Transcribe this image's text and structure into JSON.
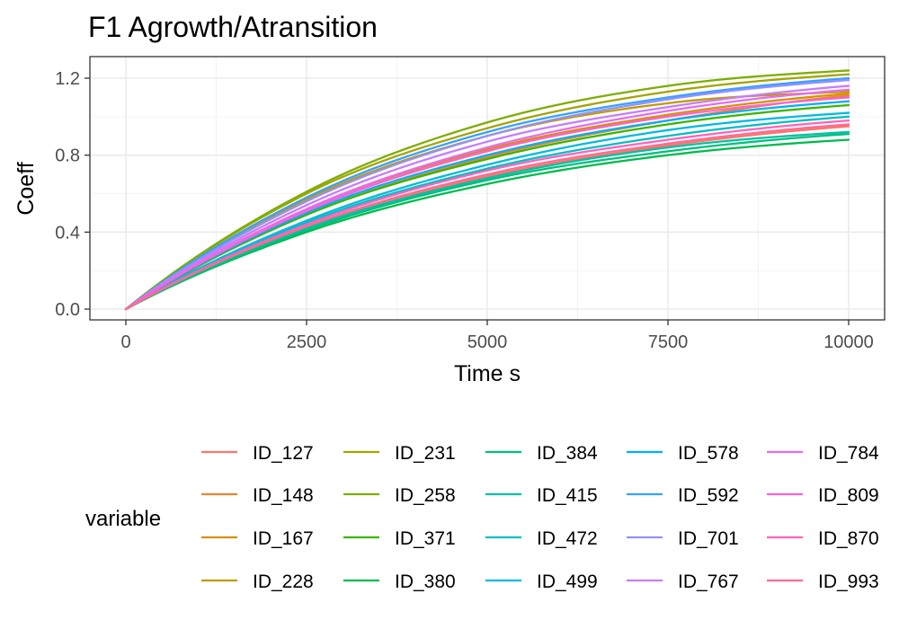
{
  "chart_data": {
    "type": "line",
    "title": "F1 Agrowth/Atransition",
    "xlabel": "Time s",
    "ylabel": "Coeff",
    "xlim": [
      0,
      10000
    ],
    "ylim": [
      0,
      1.25
    ],
    "x_ticks": [
      0,
      2500,
      5000,
      7500,
      10000
    ],
    "x_tick_labels": [
      "0",
      "2500",
      "5000",
      "7500",
      "10000"
    ],
    "y_ticks": [
      0,
      0.4,
      0.8,
      1.2
    ],
    "y_tick_labels": [
      "0.0",
      "0.4",
      "0.8",
      "1.2"
    ],
    "grid": true,
    "legend": {
      "title": "variable",
      "position": "bottom"
    },
    "x": [
      0,
      2500,
      5000,
      7500,
      10000
    ],
    "series": [
      {
        "name": "ID_127",
        "color": "#F8766D",
        "values": [
          0,
          0.43,
          0.69,
          0.85,
          0.95
        ]
      },
      {
        "name": "ID_148",
        "color": "#EA8331",
        "values": [
          0,
          0.49,
          0.79,
          0.98,
          1.11
        ]
      },
      {
        "name": "ID_167",
        "color": "#D89000",
        "values": [
          0,
          0.52,
          0.83,
          1.01,
          1.12
        ]
      },
      {
        "name": "ID_228",
        "color": "#C09B00",
        "values": [
          0,
          0.57,
          0.9,
          1.07,
          1.13
        ]
      },
      {
        "name": "ID_231",
        "color": "#A3A500",
        "values": [
          0,
          0.6,
          0.94,
          1.13,
          1.22
        ]
      },
      {
        "name": "ID_258",
        "color": "#7CAE00",
        "values": [
          0,
          0.61,
          0.97,
          1.16,
          1.24
        ]
      },
      {
        "name": "ID_371",
        "color": "#39B600",
        "values": [
          0,
          0.49,
          0.78,
          0.96,
          1.06
        ]
      },
      {
        "name": "ID_380",
        "color": "#00BB4E",
        "values": [
          0,
          0.4,
          0.65,
          0.8,
          0.88
        ]
      },
      {
        "name": "ID_384",
        "color": "#00BF7D",
        "values": [
          0,
          0.41,
          0.67,
          0.82,
          0.91
        ]
      },
      {
        "name": "ID_415",
        "color": "#00C1A3",
        "values": [
          0,
          0.42,
          0.68,
          0.84,
          0.92
        ]
      },
      {
        "name": "ID_472",
        "color": "#00BFC4",
        "values": [
          0,
          0.45,
          0.73,
          0.9,
          1.0
        ]
      },
      {
        "name": "ID_499",
        "color": "#00BAE0",
        "values": [
          0,
          0.46,
          0.75,
          0.93,
          1.02
        ]
      },
      {
        "name": "ID_578",
        "color": "#00B0F6",
        "values": [
          0,
          0.5,
          0.8,
          0.98,
          1.08
        ]
      },
      {
        "name": "ID_592",
        "color": "#35A2FF",
        "values": [
          0,
          0.58,
          0.92,
          1.1,
          1.2
        ]
      },
      {
        "name": "ID_701",
        "color": "#9590FF",
        "values": [
          0,
          0.56,
          0.9,
          1.09,
          1.19
        ]
      },
      {
        "name": "ID_767",
        "color": "#C77CFF",
        "values": [
          0,
          0.54,
          0.87,
          1.05,
          1.16
        ]
      },
      {
        "name": "ID_784",
        "color": "#E76BF3",
        "values": [
          0,
          0.52,
          0.84,
          1.03,
          1.14
        ]
      },
      {
        "name": "ID_809",
        "color": "#FA62DB",
        "values": [
          0,
          0.51,
          0.82,
          1.0,
          1.1
        ]
      },
      {
        "name": "ID_870",
        "color": "#FF62BC",
        "values": [
          0,
          0.44,
          0.72,
          0.88,
          0.98
        ]
      },
      {
        "name": "ID_993",
        "color": "#FF6C91",
        "values": [
          0,
          0.43,
          0.7,
          0.86,
          0.96
        ]
      }
    ]
  }
}
